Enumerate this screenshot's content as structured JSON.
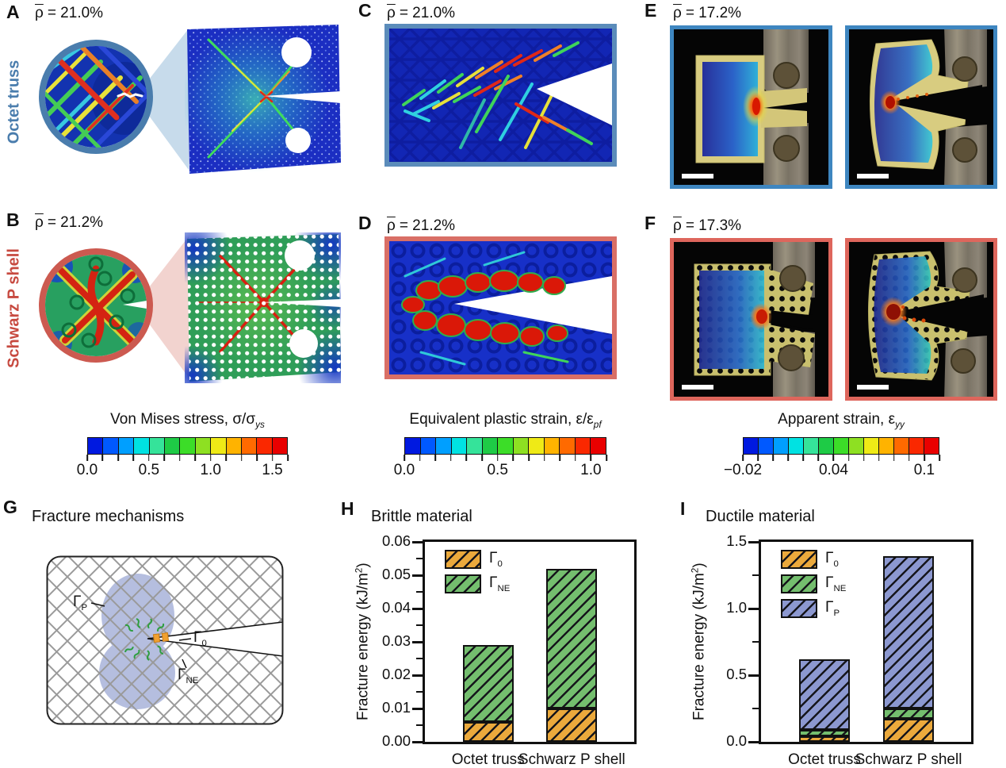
{
  "figure": {
    "colors": {
      "octet_blue": "#4A7DAD",
      "schwarz_red": "#C74A40",
      "frame_blue_c": "#5B8CBA",
      "frame_red_d": "#D96F66",
      "frame_blue_e": "#3E86C0",
      "frame_red_f": "#DE665C",
      "bar_orange": "#EBA93C",
      "bar_green": "#74BE6E",
      "bar_purple": "#8C98D0"
    },
    "colorbar_palette": [
      "#0019E0",
      "#0059FF",
      "#009FFF",
      "#00E2E2",
      "#35E39A",
      "#1ECB46",
      "#3CDD28",
      "#8EE022",
      "#EFEA16",
      "#FFB300",
      "#FF6A00",
      "#FA2800",
      "#E90000"
    ],
    "panels": {
      "A": {
        "letter": "A",
        "density_symbol": "ρ",
        "density_value": "= 21.0%",
        "side_label": "Octet truss",
        "description": "Simulated von Mises stress field in notched octet truss specimen with magnified circular inset"
      },
      "B": {
        "letter": "B",
        "density_symbol": "ρ",
        "density_value": "= 21.2%",
        "side_label": "Schwarz P shell",
        "description": "Simulated von Mises stress field in notched Schwarz P shell specimen with magnified circular inset"
      },
      "C": {
        "letter": "C",
        "density_symbol": "ρ",
        "density_value": "= 21.0%",
        "description": "Close-up simulation of crack flanks in octet truss showing equivalent plastic strain"
      },
      "D": {
        "letter": "D",
        "density_symbol": "ρ",
        "density_value": "= 21.2%",
        "description": "Close-up simulation of crack flanks in Schwarz P shell showing equivalent plastic strain"
      },
      "E": {
        "letter": "E",
        "density_symbol": "ρ",
        "density_value": "= 17.2%",
        "description": "Experimental photographs of octet truss specimen with apparent strain overlay, before and after crack growth"
      },
      "F": {
        "letter": "F",
        "density_symbol": "ρ",
        "density_value": "= 17.3%",
        "description": "Experimental photographs of Schwarz P shell specimen with apparent strain overlay, before and after crack growth"
      },
      "G": {
        "letter": "G",
        "title": "Fracture mechanisms",
        "labels": {
          "gamma_p_main": "Γ",
          "gamma_p_sub": "P",
          "gamma_0_main": "Γ",
          "gamma_0_sub": "0",
          "gamma_ne_main": "Γ",
          "gamma_ne_sub": "NE"
        }
      },
      "H": {
        "letter": "H"
      },
      "I": {
        "letter": "I"
      }
    },
    "colorbars": [
      {
        "title_main": "Von Mises stress, σ/σ",
        "title_sub": "ys",
        "tick_labels": [
          "0.0",
          "0.5",
          "1.0",
          "1.5"
        ],
        "tick_positions": [
          0,
          4,
          8,
          12
        ],
        "segments": 13
      },
      {
        "title_main": "Equivalent plastic strain, ε/ε",
        "title_sub": "pf",
        "tick_labels": [
          "0.0",
          "0.5",
          "1.0"
        ],
        "tick_positions": [
          0,
          6,
          12
        ],
        "segments": 13
      },
      {
        "title_main": "Apparent strain, ε",
        "title_sub": "yy",
        "tick_labels": [
          "−0.02",
          "0.04",
          "0.1"
        ],
        "tick_positions": [
          0,
          6,
          12
        ],
        "segments": 13
      }
    ],
    "chart_data": [
      {
        "id": "H",
        "type": "bar",
        "stacked": true,
        "title": "Brittle material",
        "ylabel_pre": "Fracture energy (kJ/m",
        "ylabel_sup": "2",
        "ylabel_post": ")",
        "categories": [
          "Octet truss",
          "Schwarz P shell"
        ],
        "series": [
          {
            "name_main": "Γ",
            "name_sub": "0",
            "color": "#EBA93C",
            "values": [
              0.006,
              0.01
            ]
          },
          {
            "name_main": "Γ",
            "name_sub": "NE",
            "color": "#74BE6E",
            "values": [
              0.023,
              0.042
            ]
          }
        ],
        "ylim": [
          0,
          0.06
        ],
        "yticks": [
          "0.00",
          "0.01",
          "0.02",
          "0.03",
          "0.04",
          "0.05",
          "0.06"
        ],
        "legend_position": "top-left",
        "grid": false
      },
      {
        "id": "I",
        "type": "bar",
        "stacked": true,
        "title": "Ductile material",
        "ylabel_pre": "Fracture energy (kJ/m",
        "ylabel_sup": "2",
        "ylabel_post": ")",
        "categories": [
          "Octet truss",
          "Schwarz P shell"
        ],
        "series": [
          {
            "name_main": "Γ",
            "name_sub": "0",
            "color": "#EBA93C",
            "values": [
              0.04,
              0.17
            ]
          },
          {
            "name_main": "Γ",
            "name_sub": "NE",
            "color": "#74BE6E",
            "values": [
              0.05,
              0.08
            ]
          },
          {
            "name_main": "Γ",
            "name_sub": "P",
            "color": "#8C98D0",
            "values": [
              0.53,
              1.14
            ]
          }
        ],
        "ylim": [
          0,
          1.5
        ],
        "yticks": [
          "0.0",
          "0.5",
          "1.0",
          "1.5"
        ],
        "legend_position": "top-left",
        "grid": false
      }
    ]
  }
}
